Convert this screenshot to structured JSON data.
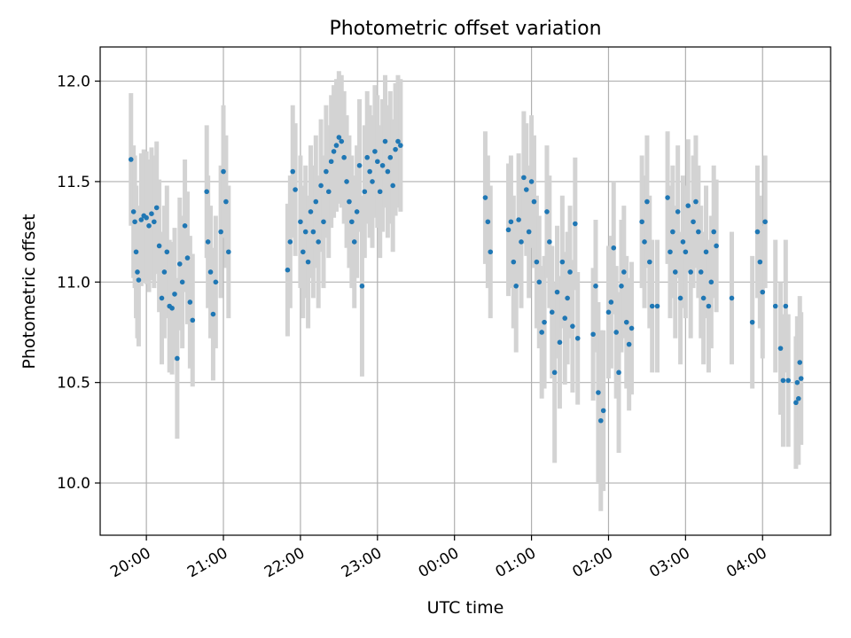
{
  "chart_data": {
    "type": "scatter",
    "title": "Photometric offset variation",
    "xlabel": "UTC time",
    "ylabel": "Photometric offset",
    "x_unit": "hours after 19:00 UTC (axis spans into the next day)",
    "xlim": [
      "19:24",
      "04:53"
    ],
    "ylim": [
      9.74,
      12.17
    ],
    "x_ticks": [
      "20:00",
      "21:00",
      "22:00",
      "23:00",
      "00:00",
      "01:00",
      "02:00",
      "03:00",
      "04:00"
    ],
    "y_ticks": [
      "10.0",
      "10.5",
      "11.0",
      "11.5",
      "12.0"
    ],
    "grid": true,
    "colors": {
      "points": "#1f77b4",
      "errorbars": "#d3d3d3",
      "grid": "#b0b0b0"
    },
    "series": [
      {
        "marker": "dot",
        "errorbars": true,
        "points": [
          [
            "19:48",
            11.61,
            0.33
          ],
          [
            "19:50",
            11.35,
            0.33
          ],
          [
            "19:51",
            11.3,
            0.33
          ],
          [
            "19:52",
            11.15,
            0.33
          ],
          [
            "19:53",
            11.05,
            0.33
          ],
          [
            "19:54",
            11.01,
            0.33
          ],
          [
            "19:56",
            11.31,
            0.33
          ],
          [
            "19:58",
            11.33,
            0.33
          ],
          [
            "20:00",
            11.32,
            0.33
          ],
          [
            "20:02",
            11.28,
            0.33
          ],
          [
            "20:04",
            11.34,
            0.33
          ],
          [
            "20:06",
            11.3,
            0.33
          ],
          [
            "20:08",
            11.37,
            0.33
          ],
          [
            "20:10",
            11.18,
            0.33
          ],
          [
            "20:12",
            10.92,
            0.33
          ],
          [
            "20:14",
            11.05,
            0.33
          ],
          [
            "20:16",
            11.15,
            0.33
          ],
          [
            "20:18",
            10.88,
            0.33
          ],
          [
            "20:20",
            10.87,
            0.33
          ],
          [
            "20:22",
            10.94,
            0.33
          ],
          [
            "20:24",
            10.62,
            0.4
          ],
          [
            "20:26",
            11.09,
            0.33
          ],
          [
            "20:28",
            11.0,
            0.33
          ],
          [
            "20:30",
            11.28,
            0.33
          ],
          [
            "20:32",
            11.12,
            0.33
          ],
          [
            "20:34",
            10.9,
            0.33
          ],
          [
            "20:36",
            10.81,
            0.33
          ],
          [
            "20:47",
            11.45,
            0.33
          ],
          [
            "20:48",
            11.2,
            0.33
          ],
          [
            "20:50",
            11.05,
            0.33
          ],
          [
            "20:52",
            10.84,
            0.33
          ],
          [
            "20:54",
            11.0,
            0.33
          ],
          [
            "20:58",
            11.25,
            0.33
          ],
          [
            "21:00",
            11.55,
            0.33
          ],
          [
            "21:02",
            11.4,
            0.33
          ],
          [
            "21:04",
            11.15,
            0.33
          ],
          [
            "21:50",
            11.06,
            0.33
          ],
          [
            "21:52",
            11.2,
            0.33
          ],
          [
            "21:54",
            11.55,
            0.33
          ],
          [
            "21:56",
            11.46,
            0.33
          ],
          [
            "22:00",
            11.3,
            0.33
          ],
          [
            "22:02",
            11.15,
            0.33
          ],
          [
            "22:04",
            11.25,
            0.33
          ],
          [
            "22:06",
            11.1,
            0.33
          ],
          [
            "22:08",
            11.35,
            0.33
          ],
          [
            "22:10",
            11.25,
            0.33
          ],
          [
            "22:12",
            11.4,
            0.33
          ],
          [
            "22:14",
            11.2,
            0.33
          ],
          [
            "22:16",
            11.48,
            0.33
          ],
          [
            "22:18",
            11.3,
            0.33
          ],
          [
            "22:20",
            11.55,
            0.33
          ],
          [
            "22:22",
            11.45,
            0.33
          ],
          [
            "22:24",
            11.6,
            0.33
          ],
          [
            "22:26",
            11.65,
            0.33
          ],
          [
            "22:28",
            11.68,
            0.33
          ],
          [
            "22:30",
            11.72,
            0.33
          ],
          [
            "22:32",
            11.7,
            0.33
          ],
          [
            "22:34",
            11.62,
            0.33
          ],
          [
            "22:36",
            11.5,
            0.33
          ],
          [
            "22:38",
            11.4,
            0.33
          ],
          [
            "22:40",
            11.3,
            0.33
          ],
          [
            "22:42",
            11.2,
            0.33
          ],
          [
            "22:44",
            11.35,
            0.33
          ],
          [
            "22:46",
            11.58,
            0.33
          ],
          [
            "22:48",
            10.98,
            0.45
          ],
          [
            "22:50",
            11.45,
            0.33
          ],
          [
            "22:52",
            11.62,
            0.33
          ],
          [
            "22:54",
            11.55,
            0.33
          ],
          [
            "22:56",
            11.5,
            0.33
          ],
          [
            "22:58",
            11.65,
            0.33
          ],
          [
            "23:00",
            11.6,
            0.33
          ],
          [
            "23:02",
            11.45,
            0.33
          ],
          [
            "23:04",
            11.58,
            0.33
          ],
          [
            "23:06",
            11.7,
            0.33
          ],
          [
            "23:08",
            11.55,
            0.33
          ],
          [
            "23:10",
            11.62,
            0.33
          ],
          [
            "23:12",
            11.48,
            0.33
          ],
          [
            "23:14",
            11.66,
            0.33
          ],
          [
            "23:16",
            11.7,
            0.33
          ],
          [
            "23:18",
            11.68,
            0.33
          ],
          [
            "00:24",
            11.42,
            0.33
          ],
          [
            "00:26",
            11.3,
            0.33
          ],
          [
            "00:28",
            11.15,
            0.33
          ],
          [
            "00:42",
            11.26,
            0.33
          ],
          [
            "00:44",
            11.3,
            0.33
          ],
          [
            "00:46",
            11.1,
            0.33
          ],
          [
            "00:48",
            10.98,
            0.33
          ],
          [
            "00:50",
            11.31,
            0.33
          ],
          [
            "00:52",
            11.2,
            0.33
          ],
          [
            "00:54",
            11.52,
            0.33
          ],
          [
            "00:56",
            11.46,
            0.33
          ],
          [
            "00:58",
            11.25,
            0.33
          ],
          [
            "01:00",
            11.5,
            0.33
          ],
          [
            "01:02",
            11.4,
            0.33
          ],
          [
            "01:04",
            11.1,
            0.33
          ],
          [
            "01:06",
            11.0,
            0.33
          ],
          [
            "01:08",
            10.75,
            0.33
          ],
          [
            "01:10",
            10.8,
            0.33
          ],
          [
            "01:12",
            11.35,
            0.33
          ],
          [
            "01:14",
            11.2,
            0.33
          ],
          [
            "01:16",
            10.85,
            0.33
          ],
          [
            "01:18",
            10.55,
            0.45
          ],
          [
            "01:20",
            10.95,
            0.33
          ],
          [
            "01:22",
            10.7,
            0.33
          ],
          [
            "01:24",
            11.1,
            0.33
          ],
          [
            "01:26",
            10.82,
            0.33
          ],
          [
            "01:28",
            10.92,
            0.33
          ],
          [
            "01:30",
            11.05,
            0.33
          ],
          [
            "01:32",
            10.78,
            0.33
          ],
          [
            "01:34",
            11.29,
            0.33
          ],
          [
            "01:36",
            10.72,
            0.33
          ],
          [
            "01:48",
            10.74,
            0.33
          ],
          [
            "01:50",
            10.98,
            0.33
          ],
          [
            "01:52",
            10.45,
            0.45
          ],
          [
            "01:54",
            10.31,
            0.45
          ],
          [
            "01:56",
            10.36,
            0.4
          ],
          [
            "02:00",
            10.85,
            0.33
          ],
          [
            "02:02",
            10.9,
            0.33
          ],
          [
            "02:04",
            11.17,
            0.33
          ],
          [
            "02:06",
            10.75,
            0.33
          ],
          [
            "02:08",
            10.55,
            0.4
          ],
          [
            "02:10",
            10.98,
            0.33
          ],
          [
            "02:12",
            11.05,
            0.33
          ],
          [
            "02:14",
            10.8,
            0.33
          ],
          [
            "02:16",
            10.69,
            0.33
          ],
          [
            "02:18",
            10.77,
            0.33
          ],
          [
            "02:26",
            11.3,
            0.33
          ],
          [
            "02:28",
            11.2,
            0.33
          ],
          [
            "02:30",
            11.4,
            0.33
          ],
          [
            "02:32",
            11.1,
            0.33
          ],
          [
            "02:34",
            10.88,
            0.33
          ],
          [
            "02:38",
            10.88,
            0.33
          ],
          [
            "02:46",
            11.42,
            0.33
          ],
          [
            "02:48",
            11.15,
            0.33
          ],
          [
            "02:50",
            11.25,
            0.33
          ],
          [
            "02:52",
            11.05,
            0.33
          ],
          [
            "02:54",
            11.35,
            0.33
          ],
          [
            "02:56",
            10.92,
            0.33
          ],
          [
            "02:58",
            11.2,
            0.33
          ],
          [
            "03:00",
            11.15,
            0.33
          ],
          [
            "03:02",
            11.38,
            0.33
          ],
          [
            "03:04",
            11.05,
            0.33
          ],
          [
            "03:06",
            11.3,
            0.33
          ],
          [
            "03:08",
            11.4,
            0.33
          ],
          [
            "03:10",
            11.25,
            0.33
          ],
          [
            "03:12",
            11.05,
            0.33
          ],
          [
            "03:14",
            10.92,
            0.33
          ],
          [
            "03:16",
            11.15,
            0.33
          ],
          [
            "03:18",
            10.88,
            0.33
          ],
          [
            "03:20",
            11.0,
            0.33
          ],
          [
            "03:22",
            11.25,
            0.33
          ],
          [
            "03:24",
            11.18,
            0.33
          ],
          [
            "03:36",
            10.92,
            0.33
          ],
          [
            "03:52",
            10.8,
            0.33
          ],
          [
            "03:56",
            11.25,
            0.33
          ],
          [
            "03:58",
            11.1,
            0.33
          ],
          [
            "04:00",
            10.95,
            0.33
          ],
          [
            "04:02",
            11.3,
            0.33
          ],
          [
            "04:10",
            10.88,
            0.33
          ],
          [
            "04:14",
            10.67,
            0.33
          ],
          [
            "04:16",
            10.51,
            0.33
          ],
          [
            "04:18",
            10.88,
            0.33
          ],
          [
            "04:20",
            10.51,
            0.33
          ],
          [
            "04:26",
            10.4,
            0.33
          ],
          [
            "04:27",
            10.5,
            0.33
          ],
          [
            "04:28",
            10.42,
            0.33
          ],
          [
            "04:29",
            10.6,
            0.33
          ],
          [
            "04:30",
            10.52,
            0.33
          ]
        ]
      }
    ]
  }
}
